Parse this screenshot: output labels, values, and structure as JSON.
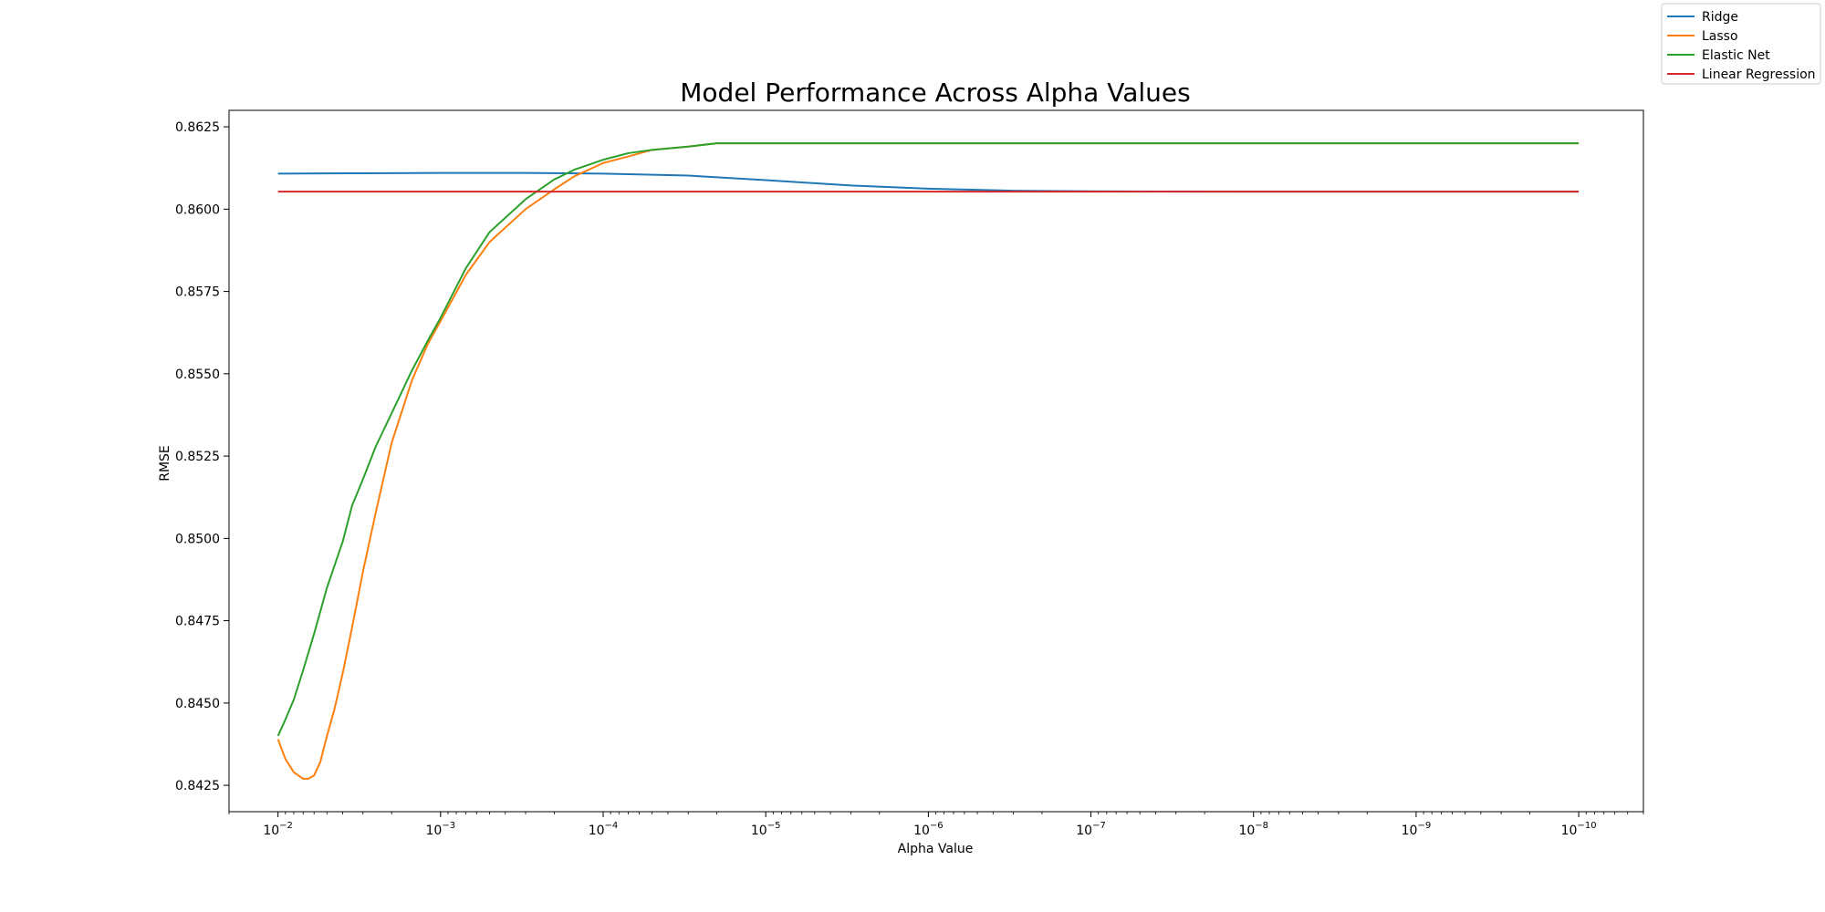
{
  "chart_data": {
    "type": "line",
    "title": "Model Performance Across Alpha Values",
    "xlabel": "Alpha Value",
    "ylabel": "RMSE",
    "xscale": "log",
    "x_direction": "decreasing",
    "xlim": [
      0.02,
      4e-11
    ],
    "ylim": [
      0.8417,
      0.863
    ],
    "grid": false,
    "legend_position": "top-right",
    "x_ticks": [
      {
        "mantissa": "10",
        "exp": "−2"
      },
      {
        "mantissa": "10",
        "exp": "−3"
      },
      {
        "mantissa": "10",
        "exp": "−4"
      },
      {
        "mantissa": "10",
        "exp": "−5"
      },
      {
        "mantissa": "10",
        "exp": "−6"
      },
      {
        "mantissa": "10",
        "exp": "−7"
      },
      {
        "mantissa": "10",
        "exp": "−8"
      },
      {
        "mantissa": "10",
        "exp": "−9"
      },
      {
        "mantissa": "10",
        "exp": "−10"
      }
    ],
    "y_ticks": [
      "0.8425",
      "0.8450",
      "0.8475",
      "0.8500",
      "0.8525",
      "0.8550",
      "0.8575",
      "0.8600",
      "0.8625"
    ],
    "series": [
      {
        "name": "Ridge",
        "color": "#1f77b4",
        "x": [
          0.01,
          0.003,
          0.001,
          0.0003,
          0.0001,
          3e-05,
          1e-05,
          3e-06,
          1e-06,
          3e-07,
          1e-07,
          1e-08,
          1e-09,
          1e-10
        ],
        "y": [
          0.86108,
          0.86109,
          0.8611,
          0.8611,
          0.86108,
          0.86102,
          0.86088,
          0.86072,
          0.86062,
          0.86056,
          0.86054,
          0.86053,
          0.86053,
          0.86053
        ]
      },
      {
        "name": "Lasso",
        "color": "#ff7f0e",
        "x": [
          0.01,
          0.009,
          0.008,
          0.007,
          0.0065,
          0.006,
          0.0055,
          0.005,
          0.0045,
          0.004,
          0.0035,
          0.003,
          0.0025,
          0.002,
          0.0015,
          0.0012,
          0.001,
          0.0007,
          0.0005,
          0.0003,
          0.0002,
          0.00015,
          0.0001,
          7e-05,
          5e-05,
          3e-05,
          2e-05,
          1e-05,
          5e-06,
          1e-06,
          1e-07,
          1e-08,
          1e-09,
          1e-10
        ],
        "y": [
          0.8439,
          0.8433,
          0.8429,
          0.8427,
          0.8427,
          0.8428,
          0.8432,
          0.844,
          0.8448,
          0.8459,
          0.8473,
          0.849,
          0.8508,
          0.8529,
          0.8548,
          0.8559,
          0.8566,
          0.858,
          0.859,
          0.86,
          0.8606,
          0.861,
          0.8614,
          0.8616,
          0.8618,
          0.8619,
          0.862,
          0.862,
          0.862,
          0.862,
          0.862,
          0.862,
          0.862,
          0.862
        ]
      },
      {
        "name": "Elastic Net",
        "color": "#2ca02c",
        "x": [
          0.01,
          0.009,
          0.008,
          0.007,
          0.006,
          0.005,
          0.004,
          0.0035,
          0.003,
          0.0025,
          0.002,
          0.0015,
          0.0012,
          0.001,
          0.0007,
          0.0005,
          0.0003,
          0.0002,
          0.00015,
          0.0001,
          7e-05,
          5e-05,
          3e-05,
          2e-05,
          1e-05,
          5e-06,
          1e-06,
          1e-07,
          1e-08,
          1e-09,
          1e-10
        ],
        "y": [
          0.844,
          0.8445,
          0.8451,
          0.846,
          0.8471,
          0.8485,
          0.8499,
          0.851,
          0.8518,
          0.8528,
          0.8538,
          0.8551,
          0.856,
          0.8567,
          0.8582,
          0.8593,
          0.8603,
          0.8609,
          0.8612,
          0.8615,
          0.8617,
          0.8618,
          0.8619,
          0.862,
          0.862,
          0.862,
          0.862,
          0.862,
          0.862,
          0.862,
          0.862
        ]
      },
      {
        "name": "Linear Regression",
        "color": "#d62728",
        "x": [
          0.01,
          1e-10
        ],
        "y": [
          0.86053,
          0.86053
        ]
      }
    ]
  }
}
